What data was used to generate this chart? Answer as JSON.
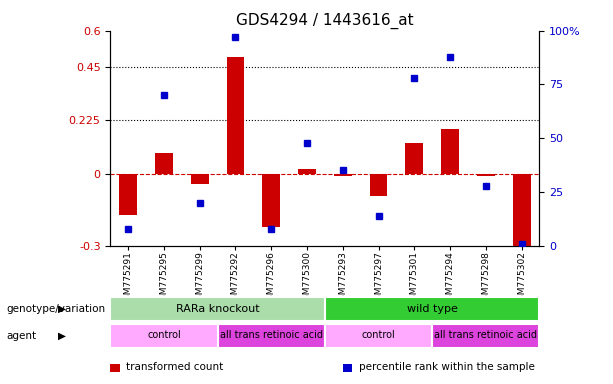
{
  "title": "GDS4294 / 1443616_at",
  "samples": [
    "GSM775291",
    "GSM775295",
    "GSM775299",
    "GSM775292",
    "GSM775296",
    "GSM775300",
    "GSM775293",
    "GSM775297",
    "GSM775301",
    "GSM775294",
    "GSM775298",
    "GSM775302"
  ],
  "bar_values": [
    -0.17,
    0.09,
    -0.04,
    0.49,
    -0.22,
    0.02,
    -0.01,
    -0.09,
    0.13,
    0.19,
    -0.01,
    -0.33
  ],
  "blue_values": [
    8,
    70,
    20,
    97,
    8,
    48,
    35,
    14,
    78,
    88,
    28,
    1
  ],
  "ylim_left": [
    -0.3,
    0.6
  ],
  "ylim_right": [
    0,
    100
  ],
  "yticks_left": [
    -0.3,
    0,
    0.225,
    0.45,
    0.6
  ],
  "yticks_right": [
    0,
    25,
    50,
    75,
    100
  ],
  "hline_y": [
    0.225,
    0.45
  ],
  "bar_color": "#cc0000",
  "blue_color": "#0000cc",
  "zero_line_color": "#cc0000",
  "genotype_groups": [
    {
      "label": "RARa knockout",
      "start": 0,
      "end": 6,
      "color": "#aaddaa"
    },
    {
      "label": "wild type",
      "start": 6,
      "end": 12,
      "color": "#33cc33"
    }
  ],
  "agent_groups": [
    {
      "label": "control",
      "start": 0,
      "end": 3,
      "color": "#ffaaff"
    },
    {
      "label": "all trans retinoic acid",
      "start": 3,
      "end": 6,
      "color": "#dd44dd"
    },
    {
      "label": "control",
      "start": 6,
      "end": 9,
      "color": "#ffaaff"
    },
    {
      "label": "all trans retinoic acid",
      "start": 9,
      "end": 12,
      "color": "#dd44dd"
    }
  ],
  "legend_items": [
    {
      "label": "transformed count",
      "color": "#cc0000"
    },
    {
      "label": "percentile rank within the sample",
      "color": "#0000cc"
    }
  ],
  "genotype_label": "genotype/variation",
  "agent_label": "agent"
}
